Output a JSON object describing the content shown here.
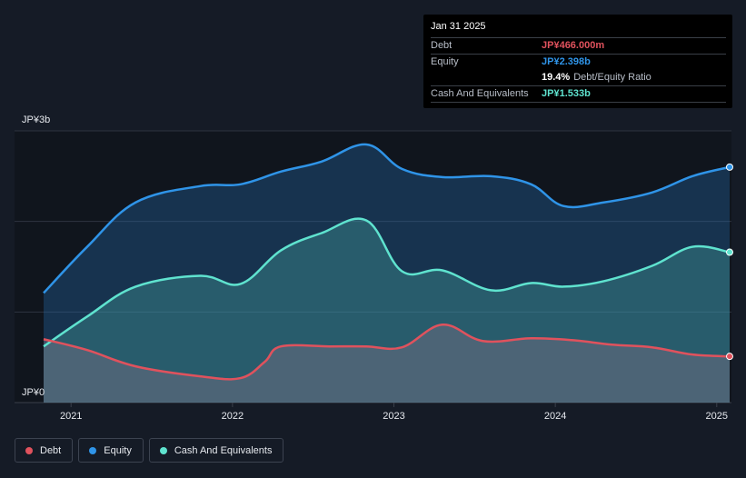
{
  "tooltip": {
    "date": "Jan 31 2025",
    "debt_label": "Debt",
    "debt_value": "JP¥466.000m",
    "equity_label": "Equity",
    "equity_value": "JP¥2.398b",
    "ratio_value": "19.4%",
    "ratio_label": "Debt/Equity Ratio",
    "cash_label": "Cash And Equivalents",
    "cash_value": "JP¥1.533b"
  },
  "legend": [
    {
      "label": "Debt",
      "color": "#e0525d"
    },
    {
      "label": "Equity",
      "color": "#2f94e8"
    },
    {
      "label": "Cash And Equivalents",
      "color": "#5fe3cf"
    }
  ],
  "chart_data": {
    "type": "area",
    "y_top_label": "JP¥3b",
    "y_bottom_label": "JP¥0",
    "ylim": [
      0,
      3
    ],
    "xlim": [
      2020.83,
      2025.08
    ],
    "x_ticks": [
      "2021",
      "2022",
      "2023",
      "2024",
      "2025"
    ],
    "x_tick_values": [
      2021,
      2022,
      2023,
      2024,
      2025
    ],
    "colors": {
      "debt": "#e0525d",
      "equity": "#2f94e8",
      "cash": "#5fe3cf"
    },
    "series": [
      {
        "name": "Equity",
        "x": [
          2020.83,
          2021.1,
          2021.4,
          2021.8,
          2022.05,
          2022.3,
          2022.55,
          2022.83,
          2023.05,
          2023.3,
          2023.6,
          2023.85,
          2024.05,
          2024.3,
          2024.6,
          2024.85,
          2025.08
        ],
        "y": [
          1.21,
          1.72,
          2.21,
          2.39,
          2.41,
          2.55,
          2.66,
          2.85,
          2.58,
          2.49,
          2.5,
          2.41,
          2.17,
          2.21,
          2.32,
          2.5,
          2.6
        ]
      },
      {
        "name": "Cash And Equivalents",
        "x": [
          2020.83,
          2021.1,
          2021.4,
          2021.8,
          2022.05,
          2022.3,
          2022.55,
          2022.83,
          2023.05,
          2023.3,
          2023.6,
          2023.85,
          2024.05,
          2024.3,
          2024.6,
          2024.85,
          2025.08
        ],
        "y": [
          0.62,
          0.95,
          1.28,
          1.4,
          1.31,
          1.68,
          1.87,
          2.01,
          1.45,
          1.46,
          1.24,
          1.32,
          1.28,
          1.34,
          1.51,
          1.72,
          1.66
        ]
      },
      {
        "name": "Debt",
        "x": [
          2020.83,
          2021.1,
          2021.4,
          2021.8,
          2022.05,
          2022.2,
          2022.3,
          2022.6,
          2022.83,
          2023.05,
          2023.3,
          2023.55,
          2023.85,
          2024.1,
          2024.35,
          2024.6,
          2024.85,
          2025.08
        ],
        "y": [
          0.7,
          0.58,
          0.4,
          0.29,
          0.27,
          0.45,
          0.62,
          0.62,
          0.62,
          0.61,
          0.86,
          0.68,
          0.71,
          0.69,
          0.64,
          0.61,
          0.53,
          0.51
        ]
      }
    ]
  }
}
